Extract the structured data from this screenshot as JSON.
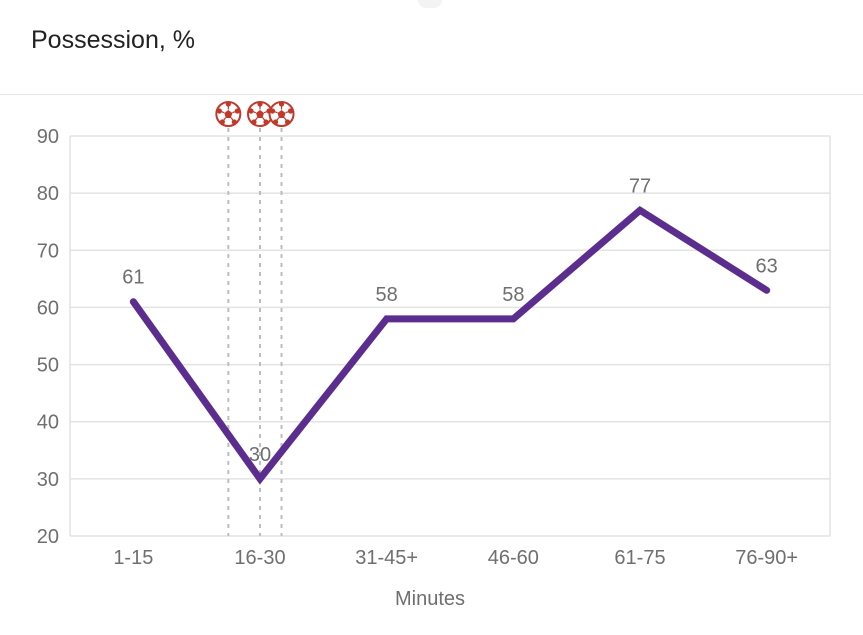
{
  "title": "Possession, %",
  "chart_data": {
    "type": "line",
    "title": "Possession, %",
    "xlabel": "Minutes",
    "ylabel": "",
    "categories": [
      "1-15",
      "16-30",
      "31-45+",
      "46-60",
      "61-75",
      "76-90+"
    ],
    "series": [
      {
        "values": [
          61,
          30,
          58,
          58,
          77,
          63
        ]
      }
    ],
    "ylim": [
      20,
      90
    ],
    "yticks": [
      20,
      30,
      40,
      50,
      60,
      70,
      80,
      90
    ],
    "grid": true,
    "goal_markers": [
      {
        "category": "16-30",
        "offset": -0.25,
        "icon": "soccer-ball-icon"
      },
      {
        "category": "16-30",
        "offset": 0.0,
        "icon": "soccer-ball-icon"
      },
      {
        "category": "16-30",
        "offset": 0.17,
        "icon": "soccer-ball-icon"
      }
    ],
    "colors": {
      "line": "#5b2d8e",
      "grid": "#e3e3e3",
      "axis_text": "#6f6f6f",
      "marker_line": "#bdbdbd",
      "ball": "#c0392b"
    }
  }
}
